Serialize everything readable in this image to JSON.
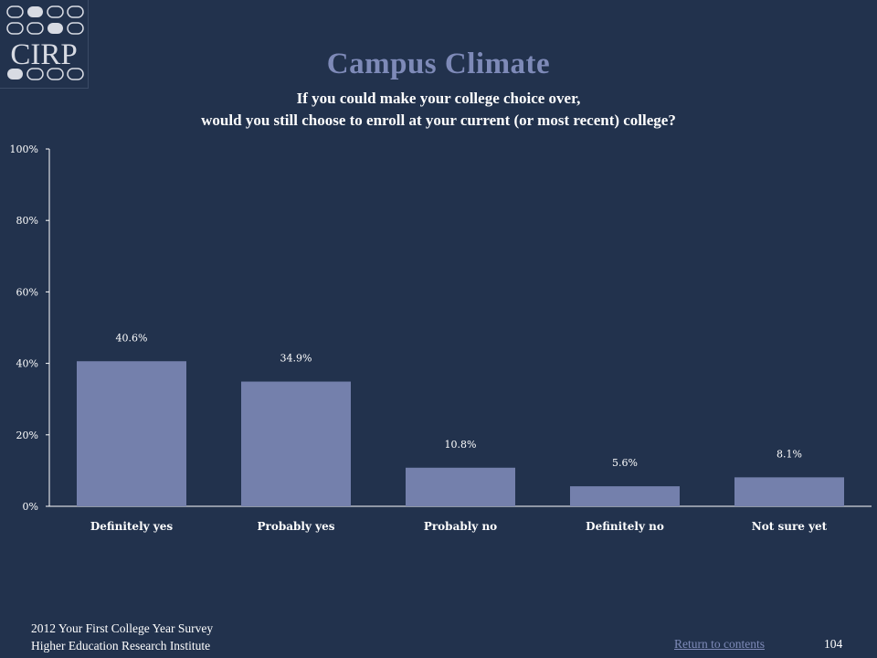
{
  "logo": {
    "text": "CIRP",
    "color": "#d8dbe3"
  },
  "header": {
    "title": "Campus Climate",
    "subtitle_line1": "If you could make your college choice over,",
    "subtitle_line2": "would you still choose to enroll at your current (or most recent) college?"
  },
  "chart_data": {
    "type": "bar",
    "categories": [
      "Definitely yes",
      "Probably yes",
      "Probably no",
      "Definitely no",
      "Not sure yet"
    ],
    "values": [
      40.6,
      34.9,
      10.8,
      5.6,
      8.1
    ],
    "value_labels": [
      "40.6%",
      "34.9%",
      "10.8%",
      "5.6%",
      "8.1%"
    ],
    "yticks": [
      "0%",
      "20%",
      "40%",
      "60%",
      "80%",
      "100%"
    ],
    "ylim": [
      0,
      100
    ],
    "title": "",
    "xlabel": "",
    "ylabel": "",
    "bar_color": "#7480ac",
    "grid": false,
    "legend": "none"
  },
  "footer": {
    "line1": "2012 Your First College Year Survey",
    "line2": "Higher Education Research Institute",
    "return_link": "Return to contents",
    "page_number": "104"
  }
}
